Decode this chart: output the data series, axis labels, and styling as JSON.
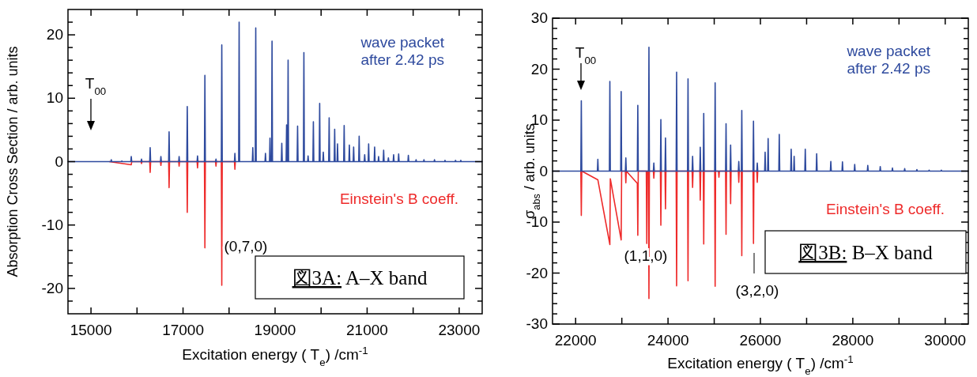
{
  "chart_data": [
    {
      "type": "line",
      "title": "図3A: A–X band",
      "xlabel": "Excitation energy ( T$_{e}$) /cm$^{-1}$",
      "ylabel": "Absorption Cross Section / arb. units",
      "xlim": [
        14500,
        23500
      ],
      "ylim": [
        -24,
        24
      ],
      "xticks": [
        15000,
        {
          "value": 16000,
          "label": null
        },
        17000,
        {
          "value": 18000,
          "label": null
        },
        19000,
        {
          "value": 20000,
          "label": null
        },
        21000,
        {
          "value": 22000,
          "label": null
        },
        23000
      ],
      "yticks": [
        {
          "value": -22,
          "label": null
        },
        -20,
        {
          "value": -18,
          "label": null
        },
        {
          "value": -16,
          "label": null
        },
        {
          "value": -14,
          "label": null
        },
        {
          "value": -12,
          "label": null
        },
        -10,
        {
          "value": -8,
          "label": null
        },
        {
          "value": -6,
          "label": null
        },
        {
          "value": -4,
          "label": null
        },
        {
          "value": -2,
          "label": null
        },
        0,
        {
          "value": 2,
          "label": null
        },
        {
          "value": 4,
          "label": null
        },
        {
          "value": 6,
          "label": null
        },
        {
          "value": 8,
          "label": null
        },
        10,
        {
          "value": 12,
          "label": null
        },
        {
          "value": 14,
          "label": null
        },
        {
          "value": 16,
          "label": null
        },
        {
          "value": 18,
          "label": null
        },
        20,
        {
          "value": 22,
          "label": null
        }
      ],
      "annotations": [
        "T$_{00}$",
        "(0,7,0)"
      ],
      "series": [
        {
          "name": "Einstein's B coeff.",
          "color": "#ee2a2a",
          "x": [
            15400,
            15875,
            15885,
            16088,
            16098,
            16108,
            16276,
            16286,
            16296,
            16509,
            16519,
            16529,
            16687,
            16697,
            16707,
            16905,
            16915,
            16925,
            17082,
            17092,
            17102,
            17305,
            17315,
            17325,
            17465,
            17475,
            17485,
            17706,
            17716,
            17726,
            17832,
            17842,
            17852,
            18117,
            18127,
            18137
          ],
          "values": [
            0,
            -0.5,
            0,
            0,
            -0.3,
            0,
            0,
            -1.7,
            0,
            0,
            -0.6,
            0,
            0,
            -4.1,
            0,
            0,
            -0.7,
            0,
            0,
            -8.0,
            0,
            0,
            -1.0,
            0,
            0,
            -13.6,
            0,
            0,
            -0.7,
            0,
            0,
            -19.5,
            0,
            0,
            -1.2,
            0
          ]
        },
        {
          "name": "wave packet after 2.42 ps",
          "color": "#2e4a9e",
          "x": [
            14500,
            15431,
            15441,
            15451,
            15660,
            15670,
            15680,
            15865,
            15875,
            15885,
            16088,
            16098,
            16108,
            16276,
            16286,
            16296,
            16509,
            16519,
            16529,
            16687,
            16697,
            16707,
            16905,
            16915,
            16925,
            17082,
            17092,
            17102,
            17305,
            17315,
            17325,
            17465,
            17475,
            17485,
            17706,
            17716,
            17726,
            17832,
            17842,
            17852,
            18117,
            18127,
            18137,
            18209,
            18219,
            18229,
            18506,
            18516,
            18526,
            18570,
            18580,
            18590,
            18781,
            18791,
            18801,
            18879,
            18889,
            18899,
            18924,
            18934,
            18944,
            19136,
            19146,
            19156,
            19240,
            19250,
            19260,
            19273,
            19283,
            19293,
            19479,
            19489,
            19499,
            19616,
            19626,
            19636,
            19707,
            19717,
            19727,
            19822,
            19832,
            19842,
            19959,
            19969,
            19979,
            20038,
            20048,
            20058,
            20165,
            20175,
            20185,
            20285,
            20295,
            20305,
            20347,
            20357,
            20367,
            20491,
            20501,
            20511,
            20604,
            20614,
            20624,
            20697,
            20707,
            20717,
            20817,
            20827,
            20837,
            20937,
            20947,
            20957,
            21023,
            21033,
            21043,
            21153,
            21163,
            21173,
            21239,
            21249,
            21259,
            21349,
            21359,
            21369,
            21452,
            21462,
            21472,
            21566,
            21576,
            21586,
            21675,
            21685,
            21695,
            21886,
            21896,
            21906,
            22054,
            22064,
            22074,
            22225,
            22235,
            22245,
            22454,
            22464,
            22474,
            22683,
            22693,
            22703,
            22911,
            22921,
            22931,
            23026,
            23036,
            23046,
            23500
          ],
          "values": [
            0,
            0,
            0.3,
            0,
            0,
            0.1,
            0,
            0,
            0.8,
            0,
            0,
            0.4,
            0,
            0,
            2.2,
            0,
            0,
            0.8,
            0,
            0,
            4.7,
            0,
            0,
            0.8,
            0,
            0,
            8.7,
            0,
            0,
            0.9,
            0,
            0,
            13.6,
            0,
            0,
            0.4,
            0,
            0,
            18.4,
            0,
            0,
            1.3,
            0,
            0,
            22.0,
            0,
            0,
            2.2,
            0,
            0,
            21.1,
            0,
            0,
            1.3,
            0,
            0,
            3.7,
            0,
            0,
            19.0,
            0,
            0,
            2.9,
            0,
            0,
            5.8,
            0,
            0,
            16.0,
            0,
            0,
            5.6,
            0,
            0,
            17.2,
            0,
            0,
            0.9,
            0,
            0,
            6.3,
            0,
            0,
            9.2,
            0,
            0,
            1.5,
            0,
            0,
            6.9,
            0,
            0,
            5.1,
            0,
            0,
            2.8,
            0,
            0,
            5.7,
            0,
            0,
            2.6,
            0,
            0,
            2.3,
            0,
            0,
            4.0,
            0,
            0,
            1.1,
            0,
            0,
            2.8,
            0,
            0,
            2.3,
            0,
            0,
            0.8,
            0,
            0,
            1.8,
            0,
            0,
            0.6,
            0,
            0,
            1.1,
            0,
            0,
            1.2,
            0,
            0,
            1.0,
            0,
            0,
            0.3,
            0,
            0,
            0.3,
            0,
            0,
            0.3,
            0,
            0,
            0.2,
            0,
            0,
            0.2,
            0,
            0,
            0.2,
            0,
            0
          ]
        }
      ]
    },
    {
      "type": "line",
      "title": "図3B: B–X band",
      "xlabel": "Excitation energy ( T$_{e}$) /cm$^{-1}$",
      "ylabel": "σ$_{abs}$ / arb. units",
      "xlim": [
        21500,
        30500
      ],
      "ylim": [
        -30,
        30
      ],
      "xticks": [
        22000,
        {
          "value": 23000,
          "label": null
        },
        24000,
        {
          "value": 25000,
          "label": null
        },
        26000,
        {
          "value": 27000,
          "label": null
        },
        28000,
        {
          "value": 29000,
          "label": null
        },
        30000
      ],
      "yticks": [
        -30,
        {
          "value": -28,
          "label": null
        },
        {
          "value": -26,
          "label": null
        },
        {
          "value": -24,
          "label": null
        },
        {
          "value": -22,
          "label": null
        },
        -20,
        {
          "value": -18,
          "label": null
        },
        {
          "value": -16,
          "label": null
        },
        {
          "value": -14,
          "label": null
        },
        {
          "value": -12,
          "label": null
        },
        -10,
        {
          "value": -8,
          "label": null
        },
        {
          "value": -6,
          "label": null
        },
        {
          "value": -4,
          "label": null
        },
        {
          "value": -2,
          "label": null
        },
        0,
        {
          "value": 2,
          "label": null
        },
        {
          "value": 4,
          "label": null
        },
        {
          "value": 6,
          "label": null
        },
        {
          "value": 8,
          "label": null
        },
        10,
        {
          "value": 12,
          "label": null
        },
        {
          "value": 14,
          "label": null
        },
        {
          "value": 16,
          "label": null
        },
        {
          "value": 18,
          "label": null
        },
        20,
        {
          "value": 22,
          "label": null
        },
        {
          "value": 24,
          "label": null
        },
        {
          "value": 26,
          "label": null
        },
        {
          "value": 28,
          "label": null
        },
        30
      ],
      "annotations": [
        "T$_{00}$",
        "(1,1,0)",
        "(3,2,0)"
      ],
      "series": [
        {
          "name": "Einstein's B coeff.",
          "color": "#ee2a2a",
          "x": [
            22113,
            22123,
            22133,
            22481,
            22741,
            22751,
            22986,
            22996,
            23077,
            23087,
            23097,
            23336,
            23346,
            23356,
            23530,
            23540,
            23550,
            23577,
            23587,
            23597,
            23683,
            23693,
            23703,
            23835,
            23845,
            23855,
            23935,
            23945,
            23955,
            24176,
            24186,
            24196,
            24423,
            24433,
            24443,
            24522,
            24532,
            24542,
            24688,
            24698,
            24708,
            24763,
            24773,
            24783,
            25010,
            25020,
            25030,
            25092,
            25102,
            25112,
            25246,
            25256,
            25266,
            25345,
            25355,
            25365,
            25522,
            25532,
            25542,
            25587,
            25597,
            25607,
            25840,
            25850,
            25860,
            25922,
            25932,
            25942
          ],
          "values": [
            0,
            -8.7,
            0,
            -1.7,
            -14.4,
            -1.5,
            -13.5,
            0,
            0,
            -2.3,
            0,
            -2.4,
            -12.6,
            0,
            0,
            -14.2,
            0,
            0,
            -25.0,
            0,
            0,
            -1.4,
            0,
            0,
            -10.6,
            0,
            0,
            -7.4,
            0,
            0,
            -22.5,
            0,
            0,
            -21.5,
            0,
            0,
            -3.2,
            0,
            0,
            -5.7,
            0,
            0,
            -14.3,
            0,
            0,
            -22.6,
            0,
            0,
            -1.2,
            0,
            0,
            -12.4,
            0,
            0,
            -6.4,
            0,
            0,
            -2.2,
            0,
            0,
            -16.6,
            0,
            0,
            -14.2,
            0,
            0,
            -2.2,
            0
          ]
        },
        {
          "name": "wave packet after 2.42 ps",
          "color": "#2e4a9e",
          "x": [
            21500,
            22113,
            22123,
            22133,
            22471,
            22481,
            22491,
            22731,
            22741,
            22751,
            22976,
            22986,
            22996,
            23077,
            23087,
            23097,
            23336,
            23346,
            23356,
            23577,
            23587,
            23597,
            23683,
            23693,
            23703,
            23835,
            23845,
            23855,
            23935,
            23945,
            23955,
            24176,
            24186,
            24196,
            24423,
            24433,
            24443,
            24522,
            24532,
            24542,
            24688,
            24698,
            24708,
            24763,
            24773,
            24783,
            25010,
            25020,
            25030,
            25246,
            25256,
            25266,
            25345,
            25355,
            25365,
            25522,
            25532,
            25542,
            25587,
            25597,
            25607,
            25840,
            25850,
            25860,
            25922,
            25932,
            25942,
            26092,
            26102,
            26112,
            26157,
            26167,
            26177,
            26398,
            26408,
            26418,
            26656,
            26666,
            26676,
            26720,
            26730,
            26740,
            26961,
            26971,
            26981,
            27208,
            27218,
            27228,
            27514,
            27524,
            27534,
            27766,
            27776,
            27786,
            28031,
            28041,
            28051,
            28314,
            28324,
            28334,
            28584,
            28594,
            28604,
            28848,
            28858,
            28868,
            29113,
            29123,
            29133,
            29377,
            29387,
            29397,
            29642,
            29652,
            29662,
            29906,
            29916,
            29926,
            30500
          ],
          "values": [
            0,
            0,
            13.8,
            0,
            0,
            2.3,
            0,
            0,
            17.6,
            0,
            0,
            15.6,
            0,
            0,
            2.6,
            0,
            0,
            12.9,
            0,
            0,
            24.3,
            0,
            0,
            1.6,
            0,
            0,
            10.1,
            0,
            0,
            6.5,
            0,
            0,
            19.4,
            0,
            0,
            18.1,
            0,
            0,
            2.9,
            0,
            0,
            4.7,
            0,
            0,
            11.3,
            0,
            0,
            17.3,
            0,
            0,
            9.3,
            0,
            0,
            5.1,
            0,
            0,
            1.9,
            0,
            0,
            11.9,
            0,
            0,
            9.8,
            0,
            0,
            1.6,
            0,
            0,
            3.7,
            0,
            0,
            6.4,
            0,
            0,
            7.2,
            0,
            0,
            4.3,
            0,
            0,
            2.9,
            0,
            0,
            4.3,
            0,
            0,
            3.4,
            0,
            0,
            1.9,
            0,
            0,
            1.8,
            0,
            0,
            1.3,
            0,
            0,
            1.1,
            0,
            0,
            0.9,
            0,
            0,
            0.6,
            0,
            0,
            0.5,
            0,
            0,
            0.3,
            0,
            0,
            0.2,
            0,
            0,
            0.2,
            0,
            0
          ]
        }
      ]
    }
  ]
}
